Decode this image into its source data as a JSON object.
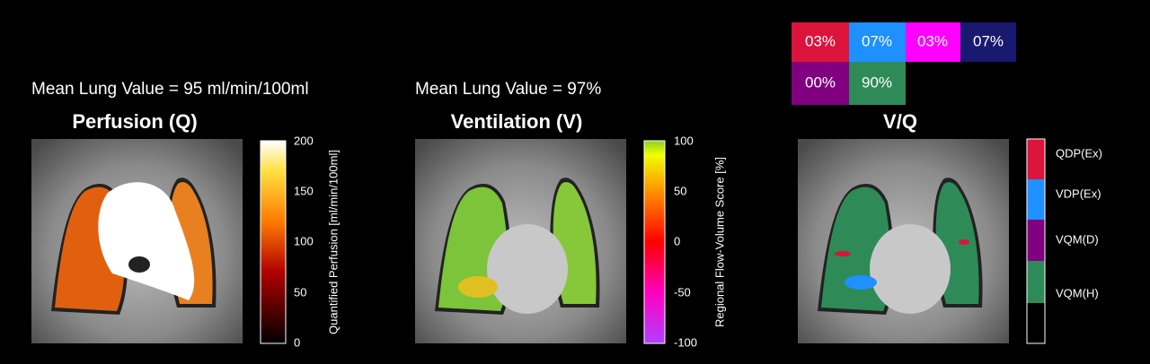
{
  "panels": [
    {
      "mean_label": "Mean Lung Value = 95 ml/min/100ml",
      "title": "Perfusion (Q)",
      "colorbar": {
        "label": "Quantified Perfusion [ml/min/100ml]",
        "ticks": [
          "200",
          "150",
          "100",
          "50",
          "0"
        ]
      }
    },
    {
      "mean_label": "Mean Lung Value = 97%",
      "title": "Ventilation (V)",
      "colorbar": {
        "label": "Regional Flow-Volume Score [%]",
        "ticks": [
          "100",
          "50",
          "0",
          "-50",
          "-100"
        ]
      }
    }
  ],
  "vq": {
    "title": "V/Q",
    "fractions": [
      "03%",
      "07%",
      "03%",
      "07%",
      "00%",
      "90%"
    ],
    "legend": [
      "QDP(Ex)",
      "VDP(Ex)",
      "VQM(D)",
      "VQM(H)"
    ]
  }
}
